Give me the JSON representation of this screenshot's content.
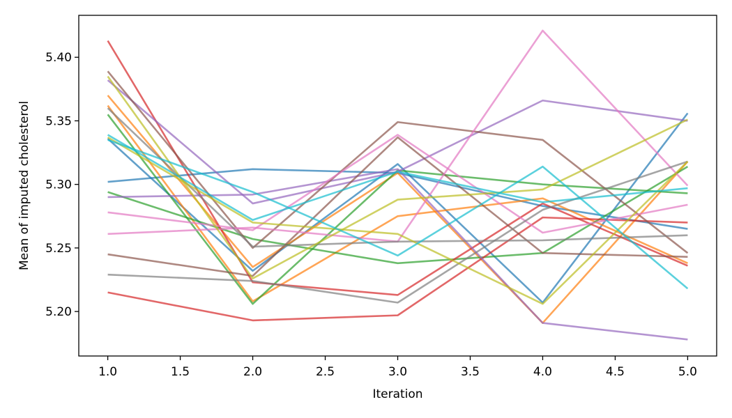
{
  "chart_data": {
    "type": "line",
    "xlabel": "Iteration",
    "ylabel": "Mean of imputed cholesterol",
    "xlim": [
      0.8,
      5.2
    ],
    "ylim": [
      5.165,
      5.433
    ],
    "x_ticks": [
      "1.0",
      "1.5",
      "2.0",
      "2.5",
      "3.0",
      "3.5",
      "4.0",
      "4.5",
      "5.0"
    ],
    "y_ticks": [
      "5.20",
      "5.25",
      "5.30",
      "5.35",
      "5.40"
    ],
    "x": [
      1,
      2,
      3,
      4,
      5
    ],
    "grid": false,
    "legend": "none",
    "series": [
      {
        "color": "#1f77b4",
        "values": [
          5.336,
          5.232,
          5.316,
          5.207,
          5.356
        ]
      },
      {
        "color": "#1f77b4",
        "values": [
          5.302,
          5.312,
          5.309,
          5.283,
          5.265
        ]
      },
      {
        "color": "#ff7f0e",
        "values": [
          5.37,
          5.235,
          5.309,
          5.191,
          5.318
        ]
      },
      {
        "color": "#ff7f0e",
        "values": [
          5.362,
          5.208,
          5.275,
          5.289,
          5.238
        ]
      },
      {
        "color": "#2ca02c",
        "values": [
          5.355,
          5.206,
          5.311,
          5.3,
          5.293
        ]
      },
      {
        "color": "#2ca02c",
        "values": [
          5.294,
          5.257,
          5.238,
          5.246,
          5.314
        ]
      },
      {
        "color": "#d62728",
        "values": [
          5.413,
          5.223,
          5.213,
          5.285,
          5.236
        ]
      },
      {
        "color": "#d62728",
        "values": [
          5.215,
          5.193,
          5.197,
          5.274,
          5.27
        ]
      },
      {
        "color": "#9467bd",
        "values": [
          5.382,
          5.285,
          5.31,
          5.366,
          5.35
        ]
      },
      {
        "color": "#9467bd",
        "values": [
          5.29,
          5.292,
          5.312,
          5.191,
          5.178
        ]
      },
      {
        "color": "#8c564b",
        "values": [
          5.389,
          5.25,
          5.349,
          5.335,
          5.246
        ]
      },
      {
        "color": "#8c564b",
        "values": [
          5.245,
          5.228,
          5.337,
          5.246,
          5.243
        ]
      },
      {
        "color": "#e377c2",
        "values": [
          5.278,
          5.264,
          5.339,
          5.262,
          5.284
        ]
      },
      {
        "color": "#e377c2",
        "values": [
          5.261,
          5.266,
          5.255,
          5.421,
          5.299
        ]
      },
      {
        "color": "#7f7f7f",
        "values": [
          5.36,
          5.251,
          5.255,
          5.256,
          5.26
        ]
      },
      {
        "color": "#7f7f7f",
        "values": [
          5.229,
          5.224,
          5.207,
          5.28,
          5.318
        ]
      },
      {
        "color": "#bcbd22",
        "values": [
          5.385,
          5.226,
          5.288,
          5.296,
          5.351
        ]
      },
      {
        "color": "#bcbd22",
        "values": [
          5.337,
          5.27,
          5.261,
          5.206,
          5.318
        ]
      },
      {
        "color": "#17becf",
        "values": [
          5.339,
          5.272,
          5.31,
          5.286,
          5.297
        ]
      },
      {
        "color": "#17becf",
        "values": [
          5.335,
          5.294,
          5.244,
          5.314,
          5.218
        ]
      }
    ]
  }
}
